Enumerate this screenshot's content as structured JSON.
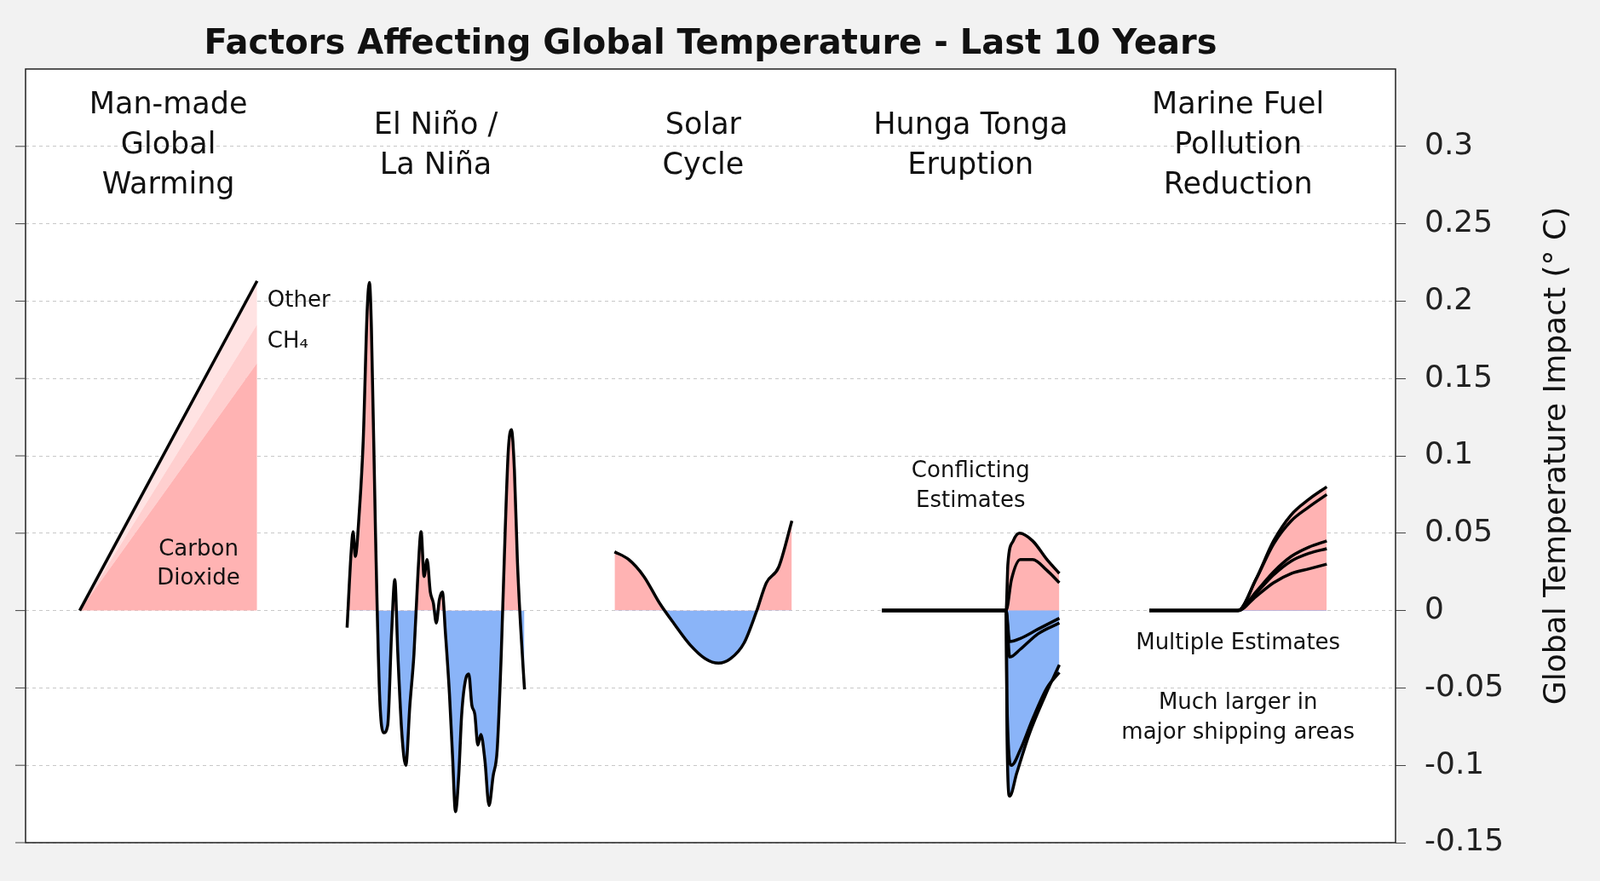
{
  "chart_data": {
    "type": "line",
    "title": "Factors Affecting Global Temperature - Last 10 Years",
    "y_label": "Global Temperature Impact (° C)",
    "ylim": [
      -0.15,
      0.35
    ],
    "yticks": [
      -0.15,
      -0.1,
      -0.05,
      0,
      0.05,
      0.1,
      0.15,
      0.2,
      0.25,
      0.3
    ],
    "grid": true,
    "tick_labels": "y",
    "panels": [
      {
        "title": "Man-made\nGlobal\nWarming",
        "xlim": [
          0,
          10
        ],
        "stacked": true,
        "series": [
          {
            "name": "Carbon\nDioxide",
            "color": "#ffb3b3",
            "x": [
              0,
              10
            ],
            "values": [
              0,
              0.16
            ]
          },
          {
            "name": "CH₄",
            "color": "#ffcfcf",
            "x": [
              0,
              10
            ],
            "values": [
              0,
              0.025
            ]
          },
          {
            "name": "Other",
            "color": "#ffe3e3",
            "x": [
              0,
              10
            ],
            "values": [
              0,
              0.028
            ]
          }
        ]
      },
      {
        "title": "El Niño /\nLa Niña",
        "xlim": [
          0,
          10
        ],
        "series": [
          {
            "x": [
              0,
              0.23,
              0.34,
              0.46,
              0.69,
              0.91,
              1.14,
              1.26,
              1.37,
              1.6,
              1.83,
              2.06,
              2.29,
              2.51,
              2.69,
              2.86,
              3.09,
              3.31,
              3.54,
              3.77,
              4.0,
              4.17,
              4.34,
              4.51,
              4.69,
              4.86,
              5.03,
              5.2,
              5.37,
              5.54,
              5.77,
              5.94,
              6.11,
              6.29,
              6.46,
              6.69,
              6.86,
              7.03,
              7.2,
              7.37,
              7.54,
              7.77,
              8.0,
              8.23,
              8.46,
              8.69,
              8.91,
              9.09,
              9.26,
              9.43,
              9.6,
              9.77,
              10
            ],
            "values": [
              -0.011,
              0.038,
              0.051,
              0.035,
              0.064,
              0.11,
              0.196,
              0.212,
              0.183,
              0.051,
              -0.054,
              -0.079,
              -0.074,
              -0.014,
              0.02,
              -0.028,
              -0.08,
              -0.1,
              -0.061,
              -0.028,
              0.025,
              0.051,
              0.022,
              0.033,
              0.012,
              0.005,
              -0.008,
              0.007,
              0.012,
              -0.014,
              -0.054,
              -0.093,
              -0.13,
              -0.107,
              -0.067,
              -0.044,
              -0.041,
              -0.061,
              -0.067,
              -0.087,
              -0.08,
              -0.097,
              -0.126,
              -0.107,
              -0.09,
              -0.028,
              0.051,
              0.104,
              0.117,
              0.091,
              0.032,
              -0.008,
              -0.051
            ]
          }
        ]
      },
      {
        "title": "Solar\nCycle",
        "xlim": [
          0,
          10
        ],
        "series": [
          {
            "x": [
              0,
              0.8,
              1.66,
              2.53,
              3.39,
              4.25,
              5.11,
              5.86,
              6.55,
              7.3,
              7.99,
              8.56,
              9.25,
              10
            ],
            "values": [
              0.038,
              0.033,
              0.022,
              0.005,
              -0.009,
              -0.022,
              -0.031,
              -0.034,
              -0.031,
              -0.021,
              -0.001,
              0.018,
              0.028,
              0.058
            ]
          }
        ]
      },
      {
        "title": "Hunga Tonga\nEruption",
        "xlim": [
          0,
          10
        ],
        "annotations": [
          "Conflicting\nEstimates"
        ],
        "series": [
          {
            "x": [
              0,
              7,
              7.1,
              7.4,
              7.75,
              8.5,
              9.3,
              10
            ],
            "values": [
              0,
              0,
              0.03,
              0.045,
              0.05,
              0.045,
              0.033,
              0.024
            ]
          },
          {
            "x": [
              0,
              7,
              7.3,
              7.8,
              8.5,
              9.3,
              10
            ],
            "values": [
              0,
              0,
              0.02,
              0.033,
              0.033,
              0.026,
              0.018
            ]
          },
          {
            "x": [
              0,
              7,
              7.05,
              7.2,
              7.6,
              8.3,
              9.2,
              10
            ],
            "values": [
              0,
              0,
              -0.08,
              -0.12,
              -0.105,
              -0.08,
              -0.055,
              -0.035
            ]
          },
          {
            "x": [
              0,
              7,
              7.05,
              7.3,
              7.8,
              8.5,
              9.3,
              10
            ],
            "values": [
              0,
              0,
              -0.06,
              -0.1,
              -0.09,
              -0.07,
              -0.05,
              -0.04
            ]
          },
          {
            "x": [
              0,
              7,
              7.2,
              7.8,
              8.8,
              10
            ],
            "values": [
              0,
              0,
              -0.03,
              -0.025,
              -0.015,
              -0.008
            ]
          },
          {
            "x": [
              0,
              7,
              7.2,
              7.8,
              8.8,
              10
            ],
            "values": [
              0,
              0,
              -0.02,
              -0.018,
              -0.012,
              -0.005
            ]
          }
        ]
      },
      {
        "title": "Marine Fuel\nPollution\nReduction",
        "xlim": [
          0,
          10
        ],
        "annotations": [
          "Multiple Estimates",
          "Much larger in\nmajor shipping areas"
        ],
        "series": [
          {
            "x": [
              0,
              5,
              6,
              7,
              8,
              9,
              10
            ],
            "values": [
              0,
              0,
              0.02,
              0.045,
              0.062,
              0.072,
              0.08
            ]
          },
          {
            "x": [
              0,
              5,
              6,
              7,
              8,
              9,
              10
            ],
            "values": [
              0,
              0,
              0.02,
              0.043,
              0.058,
              0.067,
              0.075
            ]
          },
          {
            "x": [
              0,
              5,
              6,
              7,
              8,
              9,
              10
            ],
            "values": [
              0,
              0,
              0.012,
              0.025,
              0.035,
              0.041,
              0.045
            ]
          },
          {
            "x": [
              0,
              5,
              6,
              7,
              8,
              9,
              10
            ],
            "values": [
              0,
              0,
              0.011,
              0.023,
              0.032,
              0.037,
              0.04
            ]
          },
          {
            "x": [
              0,
              5,
              6,
              7,
              8,
              9,
              10
            ],
            "values": [
              0,
              0,
              0.009,
              0.018,
              0.024,
              0.027,
              0.03
            ]
          }
        ]
      }
    ]
  }
}
